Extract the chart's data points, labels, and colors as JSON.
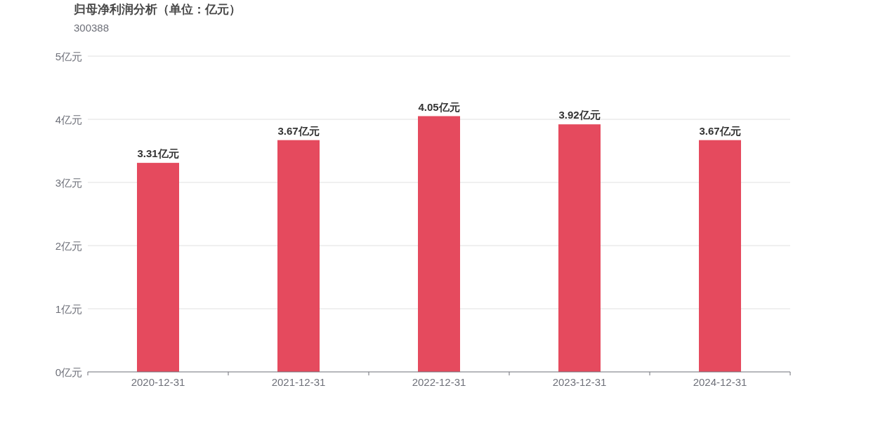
{
  "chart_data": {
    "type": "bar",
    "title": "归母净利润分析（单位：亿元）",
    "subtitle": "300388",
    "categories": [
      "2020-12-31",
      "2021-12-31",
      "2022-12-31",
      "2023-12-31",
      "2024-12-31"
    ],
    "values": [
      3.31,
      3.67,
      4.05,
      3.92,
      3.67
    ],
    "color": "#e54a5e",
    "value_labels": [
      "3.31亿元",
      "3.67亿元",
      "4.05亿元",
      "3.92亿元",
      "3.67亿元"
    ],
    "ylim": [
      0,
      5
    ],
    "yticks": [
      {
        "value": 0,
        "label": "0亿元"
      },
      {
        "value": 1,
        "label": "1亿元"
      },
      {
        "value": 2,
        "label": "2亿元"
      },
      {
        "value": 3,
        "label": "3亿元"
      },
      {
        "value": 4,
        "label": "4亿元"
      },
      {
        "value": 5,
        "label": "5亿元"
      }
    ],
    "grid": "y"
  }
}
